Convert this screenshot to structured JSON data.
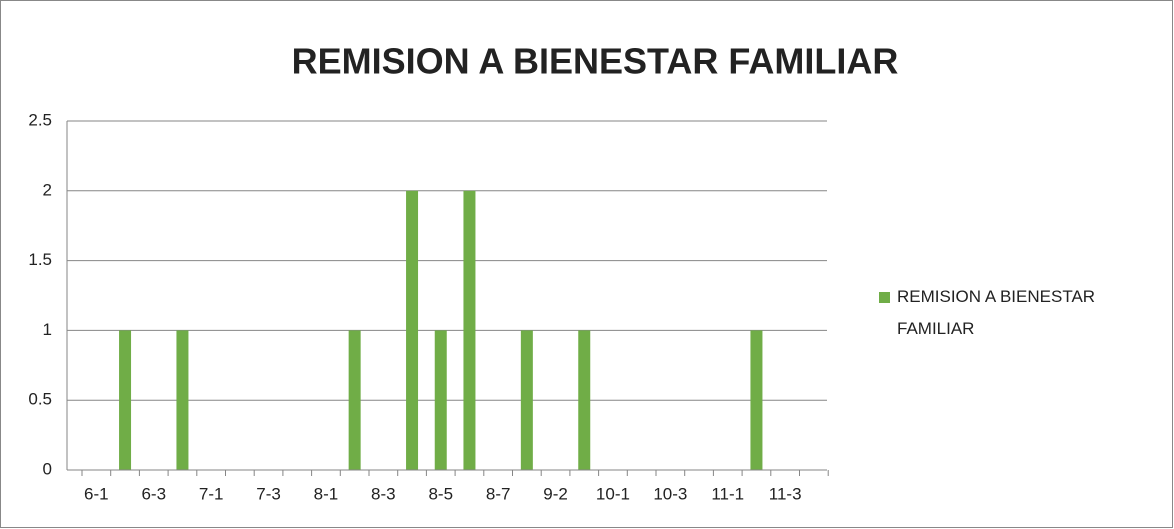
{
  "chart_data": {
    "type": "bar",
    "title": "REMISION A BIENESTAR FAMILIAR",
    "categories": [
      "6-1",
      null,
      "6-3",
      null,
      "7-1",
      null,
      "7-3",
      null,
      "8-1",
      null,
      "8-3",
      null,
      "8-5",
      null,
      "8-7",
      null,
      "9-2",
      null,
      "10-1",
      null,
      "10-3",
      null,
      "11-1",
      null,
      "11-3",
      null
    ],
    "series": [
      {
        "name": "REMISION A BIENESTAR FAMILIAR",
        "color": "#70ad47",
        "values": [
          0,
          1,
          0,
          1,
          0,
          0,
          0,
          0,
          0,
          1,
          0,
          2,
          1,
          2,
          0,
          1,
          0,
          1,
          0,
          0,
          0,
          0,
          0,
          1,
          0,
          0
        ]
      }
    ],
    "ylim": [
      0,
      2.5
    ],
    "yticks": [
      0,
      0.5,
      1,
      1.5,
      2,
      2.5
    ],
    "grid": true,
    "legend": "right"
  }
}
